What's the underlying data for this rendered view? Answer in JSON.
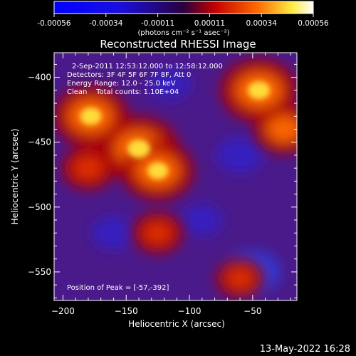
{
  "colorbar": {
    "ticks": [
      "-0.00056",
      "-0.00034",
      "-0.00011",
      "0.00011",
      "0.00034",
      "0.00056"
    ],
    "unit_label": "(photons cm⁻² s⁻¹ asec⁻²)",
    "range": [
      -0.00056,
      0.00056
    ]
  },
  "chart_data": {
    "type": "heatmap",
    "title": "Reconstructed RHESSI Image",
    "xlabel": "Heliocentric X (arcsec)",
    "ylabel": "Heliocentric Y (arcsec)",
    "xlim": [
      -207,
      -15
    ],
    "ylim": [
      -572,
      -381
    ],
    "x_ticks": [
      -200,
      -150,
      -100,
      -50
    ],
    "y_ticks": [
      -400,
      -450,
      -500,
      -550
    ],
    "hot_regions": [
      {
        "x": -178,
        "y": -430,
        "level": 0.9
      },
      {
        "x": -140,
        "y": -455,
        "level": 1.0
      },
      {
        "x": -125,
        "y": -472,
        "level": 0.85
      },
      {
        "x": -45,
        "y": -410,
        "level": 0.95
      },
      {
        "x": -25,
        "y": -440,
        "level": 0.6
      },
      {
        "x": -180,
        "y": -470,
        "level": 0.45
      },
      {
        "x": -125,
        "y": -520,
        "level": 0.4
      },
      {
        "x": -60,
        "y": -555,
        "level": 0.35
      }
    ],
    "cold_regions": [
      {
        "x": -50,
        "y": -550,
        "level": 0.7
      },
      {
        "x": -60,
        "y": -460,
        "level": 0.5
      },
      {
        "x": -160,
        "y": -520,
        "level": 0.4
      },
      {
        "x": -90,
        "y": -510,
        "level": 0.35
      },
      {
        "x": -115,
        "y": -405,
        "level": 0.35
      }
    ],
    "annotations": [
      "2-Sep-2011 12:53:12.000 to 12:58:12.000",
      "Detectors: 3F 4F 5F 6F 7F 8F, Att 0",
      "Energy Range: 12.0 - 25.0 keV",
      "Clean    Total counts: 1.10E+04",
      "Position of Peak = [-57,-392]"
    ],
    "grid": false
  },
  "footer": {
    "timestamp": "13-May-2022 16:28"
  }
}
